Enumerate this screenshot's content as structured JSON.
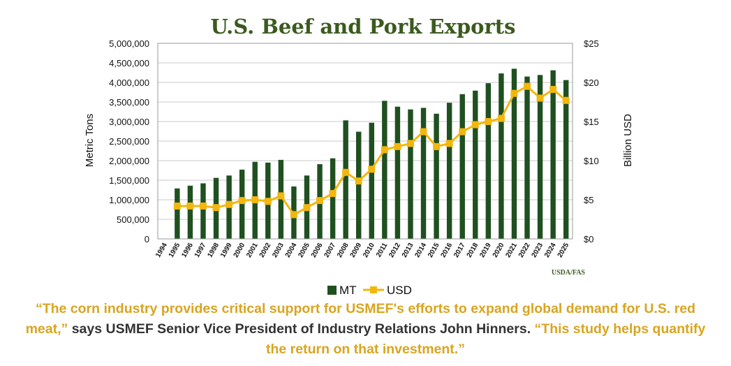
{
  "colors": {
    "bar": "#1f5020",
    "line": "#f2b70f",
    "title": "#3b5a1e",
    "quote": "#d9a520",
    "grid": "#c8c8c8"
  },
  "chart_data": {
    "type": "bar",
    "title": "U.S. Beef and Pork Exports",
    "categories": [
      "1994",
      "1995",
      "1996",
      "1997",
      "1998",
      "1999",
      "2000",
      "2001",
      "2002",
      "2003",
      "2004",
      "2005",
      "2006",
      "2007",
      "2008",
      "2009",
      "2010",
      "2011",
      "2012",
      "2013",
      "2014",
      "2015",
      "2016",
      "2017",
      "2018",
      "2019",
      "2020",
      "2021",
      "2022",
      "2023",
      "2024",
      "2025"
    ],
    "ylabel": "Metric Tons",
    "y2label": "Billion USD",
    "ylim": [
      0,
      5000000
    ],
    "y2lim": [
      0,
      25
    ],
    "yticks": [
      "5,000,000",
      "4,500,000",
      "4,000,000",
      "3,500,000",
      "3,000,000",
      "2,500,000",
      "2,000,000",
      "1,500,000",
      "1,000,000",
      "500,000",
      "0"
    ],
    "y2ticks": [
      "$25",
      "$20",
      "$15",
      "$10",
      "$5",
      "$0"
    ],
    "grid": true,
    "legend_position": "bottom",
    "source": "USDA/FAS",
    "series": [
      {
        "name": "MT",
        "type": "bar",
        "values": [
          null,
          1290000,
          1360000,
          1420000,
          1560000,
          1620000,
          1770000,
          1970000,
          1950000,
          2020000,
          1340000,
          1620000,
          1910000,
          2060000,
          3030000,
          2740000,
          2970000,
          3530000,
          3380000,
          3310000,
          3350000,
          3200000,
          3480000,
          3700000,
          3790000,
          3980000,
          4230000,
          4350000,
          4150000,
          4190000,
          4310000,
          4060000
        ]
      },
      {
        "name": "USD",
        "type": "line",
        "values": [
          null,
          4.2,
          4.2,
          4.2,
          4.0,
          4.4,
          4.9,
          5.0,
          4.8,
          5.5,
          3.1,
          4.0,
          4.9,
          5.8,
          8.5,
          7.4,
          8.9,
          11.4,
          11.8,
          12.2,
          13.7,
          11.8,
          12.2,
          13.7,
          14.6,
          15.0,
          15.4,
          18.6,
          19.5,
          18.0,
          19.1,
          17.7
        ]
      }
    ]
  },
  "quote": {
    "open": "“The corn industry provides critical support for USMEF's efforts to expand global demand for U.S. red meat,”",
    "middle": " says USMEF Senior Vice President of Industry Relations John Hinners. ",
    "close": "“This study helps quantify the return on that investment.”"
  }
}
